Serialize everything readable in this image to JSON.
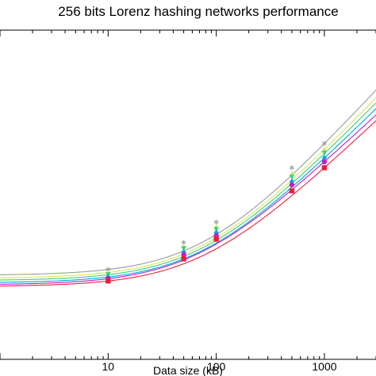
{
  "chart_data": {
    "type": "line",
    "title": "256 bits Lorenz hashing networks performance",
    "xlabel": "Data size (kB)",
    "ylabel": "",
    "x_scale": "log",
    "xlim": [
      1,
      3000
    ],
    "ylim": [
      0,
      1
    ],
    "x_ticks": [
      {
        "value": 10,
        "label": "10"
      },
      {
        "value": 100,
        "label": "100"
      },
      {
        "value": 1000,
        "label": "1000"
      }
    ],
    "grid": false,
    "legend": "none",
    "x": [
      10,
      50,
      100,
      500,
      1000
    ],
    "series": [
      {
        "color": "#9a9a9a",
        "marker": "asterisk",
        "values": [
          0.273,
          0.355,
          0.417,
          0.582,
          0.656
        ],
        "curve_start": 0.255
      },
      {
        "color": "#d7e85a",
        "marker": "triangle",
        "values": [
          0.264,
          0.344,
          0.404,
          0.565,
          0.638
        ],
        "curve_start": 0.246
      },
      {
        "color": "#3ad07a",
        "marker": "triangle-down",
        "values": [
          0.257,
          0.336,
          0.394,
          0.553,
          0.626
        ],
        "curve_start": 0.239
      },
      {
        "color": "#00a6e6",
        "marker": "diamond",
        "values": [
          0.25,
          0.326,
          0.385,
          0.54,
          0.612
        ],
        "curve_start": 0.232
      },
      {
        "color": "#c020c0",
        "marker": "circle",
        "values": [
          0.245,
          0.318,
          0.376,
          0.53,
          0.6
        ],
        "curve_start": 0.226
      },
      {
        "color": "#e8203a",
        "marker": "square",
        "values": [
          0.238,
          0.305,
          0.365,
          0.512,
          0.582
        ],
        "curve_start": 0.221
      }
    ]
  }
}
